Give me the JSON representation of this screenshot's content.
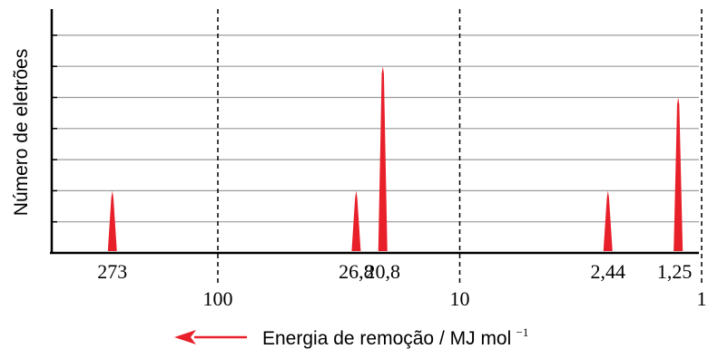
{
  "chart_data": {
    "type": "bar",
    "title": "",
    "xlabel": "Energia de remoção / MJ mol",
    "xlabel_superscript": "−1",
    "ylabel": "Número de eletrões",
    "x_scale": "log",
    "x_direction": "decreasing-to-right",
    "x_ticks": [
      "100",
      "10",
      "1"
    ],
    "x_tick_values": [
      100,
      10,
      1
    ],
    "grid": true,
    "ylim": [
      0,
      7
    ],
    "peak_color": "#e8202a",
    "arrow_color": "#e8202a",
    "series": [
      {
        "x": [
          273,
          26.8,
          20.8,
          2.44,
          1.25
        ],
        "labels": [
          "273",
          "26,8",
          "20,8",
          "2,44",
          "1,25"
        ],
        "values": [
          2,
          2,
          6,
          2,
          5
        ]
      }
    ]
  }
}
